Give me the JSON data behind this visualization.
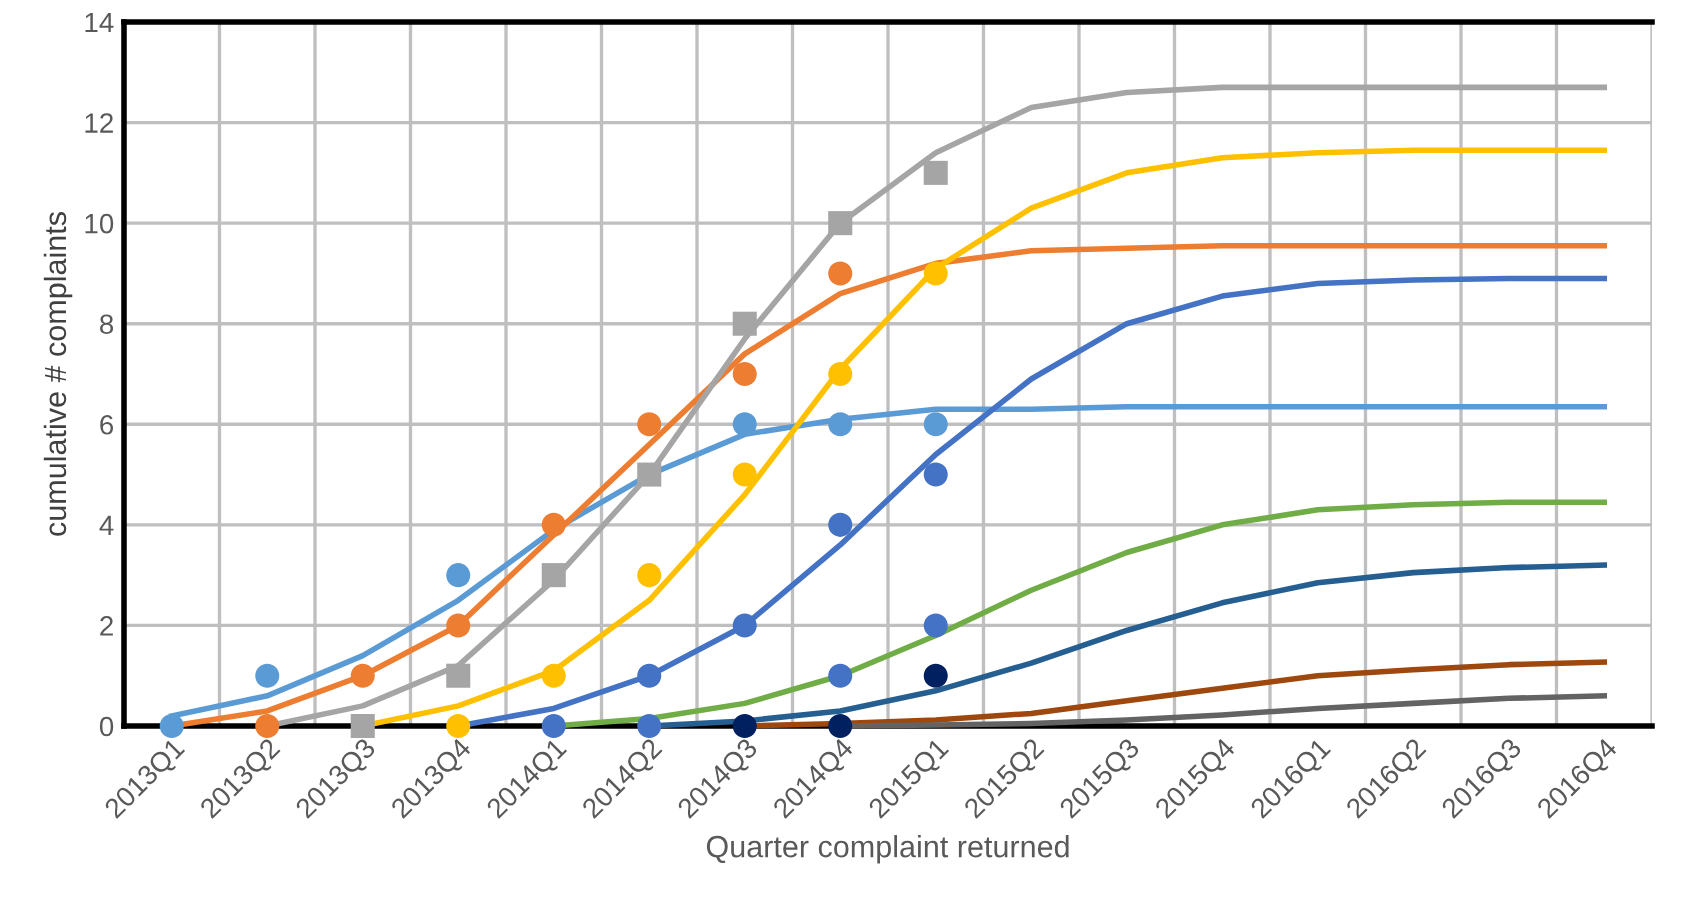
{
  "chart_data": {
    "type": "line",
    "xlabel": "Quarter complaint returned",
    "ylabel": "cumulative # complaints",
    "categories": [
      "2013Q1",
      "2013Q2",
      "2013Q3",
      "2013Q4",
      "2014Q1",
      "2014Q2",
      "2014Q3",
      "2014Q4",
      "2015Q1",
      "2015Q2",
      "2015Q3",
      "2015Q4",
      "2016Q1",
      "2016Q2",
      "2016Q3",
      "2016Q4"
    ],
    "ylim": [
      0,
      14
    ],
    "yticks": [
      0,
      2,
      4,
      6,
      8,
      10,
      12,
      14
    ],
    "grid": true,
    "series": [
      {
        "marker": "none",
        "color": "#5b9bd5",
        "values": [
          0.2,
          0.6,
          1.4,
          2.5,
          3.9,
          5.0,
          5.8,
          6.1,
          6.3,
          6.3,
          6.35,
          6.35,
          6.35,
          6.35,
          6.35,
          6.35
        ]
      },
      {
        "marker": "none",
        "color": "#ed7d31",
        "values": [
          0,
          0.3,
          1.0,
          2.0,
          3.8,
          5.6,
          7.4,
          8.6,
          9.2,
          9.45,
          9.5,
          9.55,
          9.55,
          9.55,
          9.55,
          9.55
        ]
      },
      {
        "marker": "none",
        "color": "#a5a5a5",
        "values": [
          null,
          0,
          0.4,
          1.2,
          2.9,
          5.0,
          7.7,
          10.0,
          11.4,
          12.3,
          12.6,
          12.7,
          12.7,
          12.7,
          12.7,
          12.7
        ]
      },
      {
        "marker": "none",
        "color": "#ffc000",
        "values": [
          null,
          null,
          0,
          0.4,
          1.1,
          2.5,
          4.6,
          7.1,
          9.1,
          10.3,
          11.0,
          11.3,
          11.4,
          11.45,
          11.45,
          11.45
        ]
      },
      {
        "marker": "none",
        "color": "#4472c4",
        "values": [
          null,
          null,
          null,
          0,
          0.35,
          1.0,
          2.0,
          3.6,
          5.4,
          6.9,
          8.0,
          8.55,
          8.8,
          8.87,
          8.9,
          8.9
        ]
      },
      {
        "marker": "none",
        "color": "#70ad47",
        "values": [
          null,
          null,
          null,
          null,
          0,
          0.15,
          0.45,
          1.0,
          1.8,
          2.7,
          3.45,
          4.0,
          4.3,
          4.4,
          4.45,
          4.45
        ]
      },
      {
        "marker": "none",
        "color": "#255e91",
        "values": [
          null,
          null,
          null,
          null,
          null,
          0,
          0.1,
          0.3,
          0.7,
          1.25,
          1.9,
          2.45,
          2.85,
          3.05,
          3.15,
          3.2
        ]
      },
      {
        "marker": "none",
        "color": "#9e480e",
        "values": [
          null,
          null,
          null,
          null,
          null,
          null,
          0,
          0.05,
          0.12,
          0.25,
          0.5,
          0.75,
          1.0,
          1.12,
          1.22,
          1.27
        ]
      },
      {
        "marker": "none",
        "color": "#636363",
        "values": [
          null,
          null,
          null,
          null,
          null,
          null,
          null,
          0,
          0.02,
          0.05,
          0.12,
          0.22,
          0.35,
          0.45,
          0.55,
          0.6
        ]
      },
      {
        "type": "scatter",
        "marker": "circle",
        "color": "#5b9bd5",
        "values": [
          0,
          1,
          null,
          3,
          null,
          null,
          6,
          6,
          6,
          null,
          null,
          null,
          null,
          null,
          null,
          null
        ]
      },
      {
        "type": "scatter",
        "marker": "circle",
        "color": "#ed7d31",
        "values": [
          null,
          0,
          1,
          2,
          4,
          6,
          7,
          9,
          null,
          null,
          null,
          null,
          null,
          null,
          null,
          null
        ]
      },
      {
        "type": "scatter",
        "marker": "square",
        "color": "#a5a5a5",
        "values": [
          null,
          null,
          0,
          1,
          3,
          5,
          8,
          10,
          11,
          null,
          null,
          null,
          null,
          null,
          null,
          null
        ]
      },
      {
        "type": "scatter",
        "marker": "circle",
        "color": "#ffc000",
        "values": [
          null,
          null,
          null,
          0,
          1,
          3,
          5,
          7,
          9,
          null,
          null,
          null,
          null,
          null,
          null,
          null
        ]
      },
      {
        "type": "scatter",
        "marker": "circle",
        "color": "#4472c4",
        "values": [
          null,
          null,
          null,
          null,
          0,
          1,
          2,
          4,
          5,
          null,
          null,
          null,
          null,
          null,
          null,
          null
        ]
      },
      {
        "type": "scatter",
        "marker": "circle",
        "color": "#4472c4",
        "values": [
          null,
          null,
          null,
          null,
          null,
          0,
          null,
          1,
          2,
          null,
          null,
          null,
          null,
          null,
          null,
          null
        ]
      },
      {
        "type": "scatter",
        "marker": "circle",
        "color": "#002060",
        "values": [
          null,
          null,
          null,
          null,
          null,
          null,
          0,
          0,
          1,
          null,
          null,
          null,
          null,
          null,
          null,
          null
        ]
      }
    ]
  }
}
